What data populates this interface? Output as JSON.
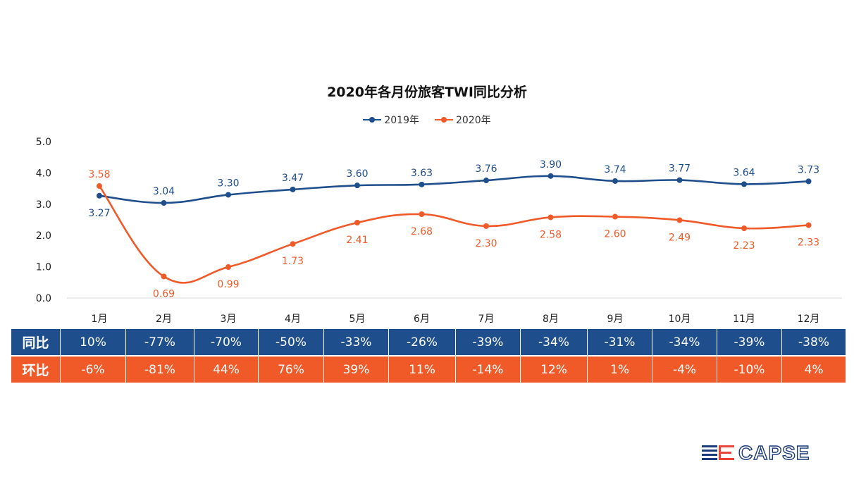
{
  "chart_data": {
    "type": "line",
    "title": "2020年各月份旅客TWI同比分析",
    "categories": [
      "1月",
      "2月",
      "3月",
      "4月",
      "5月",
      "6月",
      "7月",
      "8月",
      "9月",
      "10月",
      "11月",
      "12月"
    ],
    "series": [
      {
        "name": "2019年",
        "color": "#1f4e8c",
        "values": [
          3.27,
          3.04,
          3.3,
          3.47,
          3.6,
          3.63,
          3.76,
          3.9,
          3.74,
          3.77,
          3.64,
          3.73
        ],
        "labels": [
          "3.27",
          "3.04",
          "3.30",
          "3.47",
          "3.60",
          "3.63",
          "3.76",
          "3.90",
          "3.74",
          "3.77",
          "3.64",
          "3.73"
        ]
      },
      {
        "name": "2020年",
        "color": "#f05a28",
        "values": [
          3.58,
          0.69,
          0.99,
          1.73,
          2.41,
          2.68,
          2.3,
          2.58,
          2.6,
          2.49,
          2.23,
          2.33
        ],
        "labels": [
          "3.58",
          "0.69",
          "0.99",
          "1.73",
          "2.41",
          "2.68",
          "2.30",
          "2.58",
          "2.60",
          "2.49",
          "2.23",
          "2.33"
        ]
      }
    ],
    "ylim": [
      0,
      5
    ],
    "yticks": [
      "0.0",
      "1.0",
      "2.0",
      "3.0",
      "4.0",
      "5.0"
    ],
    "grid": false,
    "legend_position": "top-center",
    "line_style": "smooth"
  },
  "table": {
    "rows": [
      {
        "label": "同比",
        "color": "#1f4e8c",
        "cells": [
          "10%",
          "-77%",
          "-70%",
          "-50%",
          "-33%",
          "-26%",
          "-39%",
          "-34%",
          "-31%",
          "-34%",
          "-39%",
          "-38%"
        ]
      },
      {
        "label": "环比",
        "color": "#f05a28",
        "cells": [
          "-6%",
          "-81%",
          "44%",
          "76%",
          "39%",
          "11%",
          "-14%",
          "12%",
          "1%",
          "-4%",
          "-10%",
          "4%"
        ]
      }
    ]
  },
  "logo": {
    "text": "CAPSE",
    "colors": [
      "#1a3a7a",
      "#e8443a"
    ]
  }
}
